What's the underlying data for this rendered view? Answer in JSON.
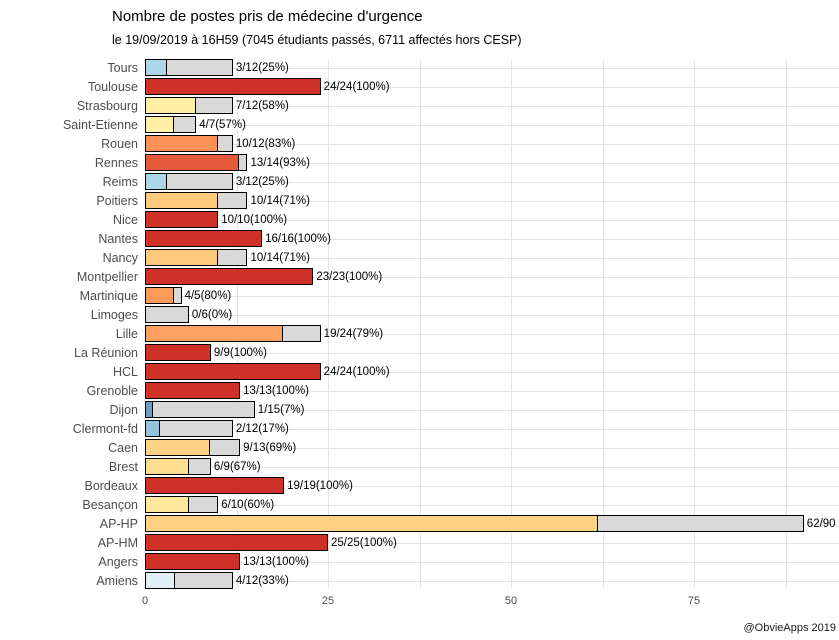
{
  "footer": {
    "attribution": "@ObvieApps 2019"
  },
  "chart_data": {
    "type": "bar",
    "orientation": "horizontal",
    "title": "Nombre de postes pris de médecine d'urgence",
    "subtitle": "le 19/09/2019 à 16H59 (7045 étudiants passés, 6711 affectés hors CESP)",
    "xlabel": "",
    "ylabel": "",
    "xlim": [
      0,
      94.8
    ],
    "x_ticks": [
      0,
      25,
      50,
      75
    ],
    "x_minor_ticks": [
      12.5,
      37.5,
      62.5,
      87.5
    ],
    "grid": true,
    "legend": "none",
    "colors": {
      "remainder_fill": "#d9d9d9",
      "bar_border": "#000000",
      "grid_line": "#e4e4e4",
      "axis_text": "#4d4d4d"
    },
    "rows": [
      {
        "label": "Tours",
        "taken": 3,
        "total": 12,
        "pct": 25,
        "annotation": "3/12(25%)",
        "color": "#abd7e8"
      },
      {
        "label": "Toulouse",
        "taken": 24,
        "total": 24,
        "pct": 100,
        "annotation": "24/24(100%)",
        "color": "#cd3127"
      },
      {
        "label": "Strasbourg",
        "taken": 7,
        "total": 12,
        "pct": 58,
        "annotation": "7/12(58%)",
        "color": "#feefa2"
      },
      {
        "label": "Saint-Etienne",
        "taken": 4,
        "total": 7,
        "pct": 57,
        "annotation": "4/7(57%)",
        "color": "#fef0a4"
      },
      {
        "label": "Rouen",
        "taken": 10,
        "total": 12,
        "pct": 83,
        "annotation": "10/12(83%)",
        "color": "#fb9157"
      },
      {
        "label": "Rennes",
        "taken": 13,
        "total": 14,
        "pct": 93,
        "annotation": "13/14(93%)",
        "color": "#e65a3c"
      },
      {
        "label": "Reims",
        "taken": 3,
        "total": 12,
        "pct": 25,
        "annotation": "3/12(25%)",
        "color": "#abd7e8"
      },
      {
        "label": "Poitiers",
        "taken": 10,
        "total": 14,
        "pct": 71,
        "annotation": "10/14(71%)",
        "color": "#fdc97c"
      },
      {
        "label": "Nice",
        "taken": 10,
        "total": 10,
        "pct": 100,
        "annotation": "10/10(100%)",
        "color": "#cd3127"
      },
      {
        "label": "Nantes",
        "taken": 16,
        "total": 16,
        "pct": 100,
        "annotation": "16/16(100%)",
        "color": "#cd3127"
      },
      {
        "label": "Nancy",
        "taken": 10,
        "total": 14,
        "pct": 71,
        "annotation": "10/14(71%)",
        "color": "#fdc97c"
      },
      {
        "label": "Montpellier",
        "taken": 23,
        "total": 23,
        "pct": 100,
        "annotation": "23/23(100%)",
        "color": "#cd3127"
      },
      {
        "label": "Martinique",
        "taken": 4,
        "total": 5,
        "pct": 80,
        "annotation": "4/5(80%)",
        "color": "#fb9a59"
      },
      {
        "label": "Limoges",
        "taken": 0,
        "total": 6,
        "pct": 0,
        "annotation": "0/6(0%)",
        "color": "#d9d9d9"
      },
      {
        "label": "Lille",
        "taken": 19,
        "total": 24,
        "pct": 79,
        "annotation": "19/24(79%)",
        "color": "#fca160"
      },
      {
        "label": "La Réunion",
        "taken": 9,
        "total": 9,
        "pct": 100,
        "annotation": "9/9(100%)",
        "color": "#cd3127"
      },
      {
        "label": "HCL",
        "taken": 24,
        "total": 24,
        "pct": 100,
        "annotation": "24/24(100%)",
        "color": "#cd3127"
      },
      {
        "label": "Grenoble",
        "taken": 13,
        "total": 13,
        "pct": 100,
        "annotation": "13/13(100%)",
        "color": "#cd3127"
      },
      {
        "label": "Dijon",
        "taken": 1,
        "total": 15,
        "pct": 7,
        "annotation": "1/15(7%)",
        "color": "#6b9dc9"
      },
      {
        "label": "Clermont-fd",
        "taken": 2,
        "total": 12,
        "pct": 17,
        "annotation": "2/12(17%)",
        "color": "#94c4dd"
      },
      {
        "label": "Caen",
        "taken": 9,
        "total": 13,
        "pct": 69,
        "annotation": "9/13(69%)",
        "color": "#fed285"
      },
      {
        "label": "Brest",
        "taken": 6,
        "total": 9,
        "pct": 67,
        "annotation": "6/9(67%)",
        "color": "#fede90"
      },
      {
        "label": "Bordeaux",
        "taken": 19,
        "total": 19,
        "pct": 100,
        "annotation": "19/19(100%)",
        "color": "#cd3127"
      },
      {
        "label": "Besançon",
        "taken": 6,
        "total": 10,
        "pct": 60,
        "annotation": "6/10(60%)",
        "color": "#fde89b"
      },
      {
        "label": "AP-HP",
        "taken": 62,
        "total": 90,
        "pct": 69,
        "annotation": "62/90",
        "color": "#fed182"
      },
      {
        "label": "AP-HM",
        "taken": 25,
        "total": 25,
        "pct": 100,
        "annotation": "25/25(100%)",
        "color": "#cd3127"
      },
      {
        "label": "Angers",
        "taken": 13,
        "total": 13,
        "pct": 100,
        "annotation": "13/13(100%)",
        "color": "#cd3127"
      },
      {
        "label": "Amiens",
        "taken": 4,
        "total": 12,
        "pct": 33,
        "annotation": "4/12(33%)",
        "color": "#dff1f7"
      }
    ]
  }
}
